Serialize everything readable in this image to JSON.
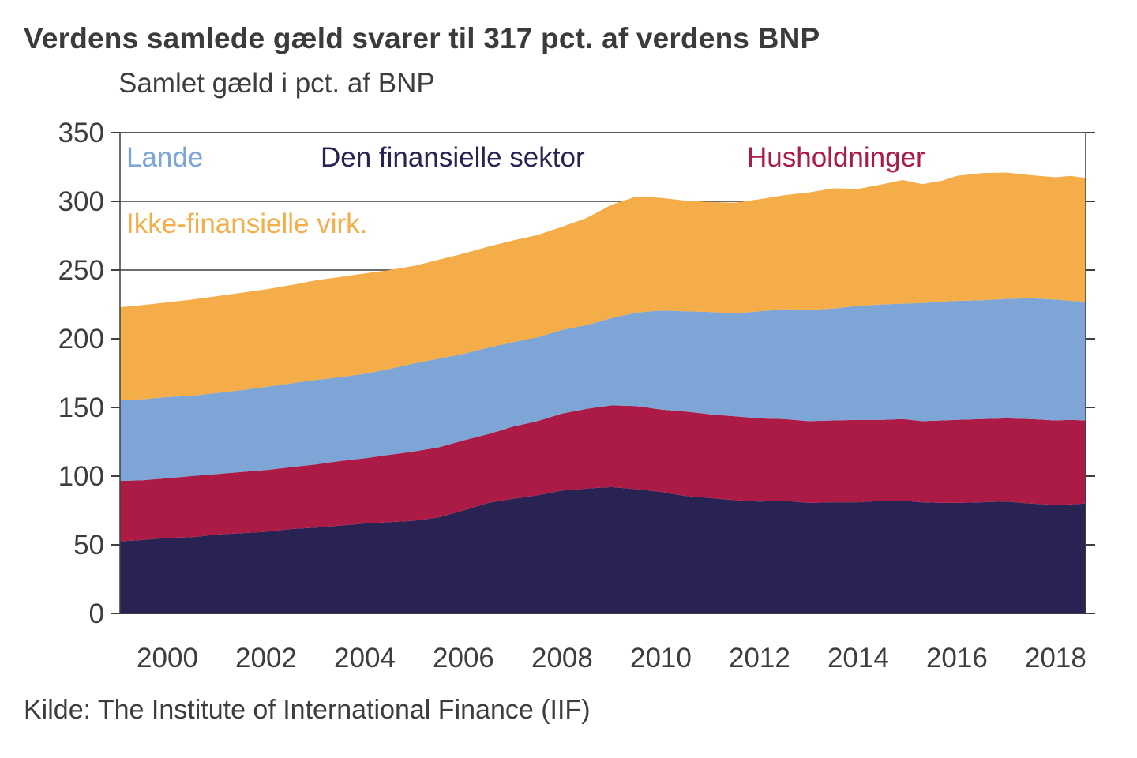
{
  "title": "Verdens samlede gæld svarer til 317 pct. af verdens BNP",
  "subtitle": "Samlet gæld i pct. af BNP",
  "source": "Kilde: The Institute of International Finance (IIF)",
  "colors": {
    "financial": "#292353",
    "households": "#AC1B45",
    "government": "#7DA5D5",
    "corporates": "#F4AD49",
    "grid": "#3f3f3f",
    "axis_text": "#3d3d3d"
  },
  "legend": {
    "lande": "Lande",
    "finansiel": "Den finansielle sektor",
    "husholdninger": "Husholdninger",
    "ikkefin": "Ikke-finansielle virk."
  },
  "axes": {
    "y_ticks": [
      0,
      50,
      100,
      150,
      200,
      250,
      300,
      350
    ],
    "x_ticks": [
      2000,
      2002,
      2004,
      2006,
      2008,
      2010,
      2012,
      2014,
      2016,
      2018
    ],
    "ylim": [
      0,
      350
    ],
    "xlim": [
      1999.04,
      2018.61
    ]
  },
  "chart_data": {
    "type": "area",
    "stacked": true,
    "title": "Samlet gæld i pct. af BNP",
    "xlabel": "",
    "ylabel": "pct. af BNP",
    "grid": "horizontal",
    "legend_position": "inside-top",
    "x": [
      1999.04,
      1999.5,
      2000,
      2000.5,
      2001,
      2001.5,
      2002,
      2002.5,
      2003,
      2003.5,
      2004,
      2004.5,
      2005,
      2005.5,
      2006,
      2006.5,
      2007,
      2007.5,
      2008,
      2008.5,
      2009,
      2009.5,
      2010,
      2010.5,
      2011,
      2011.5,
      2012,
      2012.5,
      2013,
      2013.5,
      2014,
      2014.5,
      2014.9,
      2015.3,
      2015.7,
      2016,
      2016.5,
      2017,
      2017.5,
      2018,
      2018.3,
      2018.61
    ],
    "series": [
      {
        "name": "Den finansielle sektor",
        "color_key": "financial",
        "values": [
          52.5,
          53.5,
          55,
          55.5,
          57.5,
          58.5,
          59.5,
          61.5,
          62.5,
          64,
          65.5,
          66.5,
          67.5,
          70,
          75,
          80.5,
          83.5,
          86,
          89.5,
          91,
          92,
          90.5,
          88.5,
          85.5,
          84,
          82.5,
          81.5,
          82,
          80.5,
          81,
          81,
          82,
          82,
          81,
          80.5,
          80.5,
          81,
          81.5,
          80,
          79,
          79.5,
          80
        ]
      },
      {
        "name": "Husholdninger",
        "color_key": "households",
        "values": [
          44,
          43.5,
          43.5,
          44.5,
          44,
          44.5,
          45,
          45,
          46,
          47,
          47.5,
          49,
          50.5,
          51,
          51,
          50,
          52.5,
          54,
          56,
          58,
          59.5,
          60.5,
          60,
          61.5,
          61,
          61,
          60.5,
          59.5,
          59.5,
          59.5,
          60,
          59,
          59.5,
          59,
          60,
          60.5,
          60.5,
          60.5,
          61.5,
          61.5,
          61.5,
          60.5
        ]
      },
      {
        "name": "Lande",
        "color_key": "government",
        "values": [
          58.5,
          59,
          59,
          58.5,
          59,
          59.5,
          60.5,
          61,
          61.5,
          61,
          61.5,
          62.5,
          64,
          64.5,
          63,
          63,
          61.5,
          61,
          61,
          61,
          63.5,
          68,
          72,
          73,
          74.5,
          75,
          78,
          80,
          81,
          81.5,
          83,
          84,
          84,
          86,
          86.5,
          86.5,
          86.5,
          87,
          88,
          88,
          86.5,
          86.5
        ]
      },
      {
        "name": "Ikke-finansielle virk.",
        "color_key": "corporates",
        "values": [
          68,
          68.5,
          69,
          70,
          70.5,
          71,
          71,
          71.5,
          72.5,
          73,
          73,
          72,
          71,
          72,
          73,
          73.5,
          74,
          74.5,
          75,
          78,
          82.5,
          84.5,
          82,
          80.5,
          80,
          80.5,
          81.5,
          83,
          85.5,
          87.5,
          85,
          87.5,
          90,
          86.5,
          88,
          91,
          92.5,
          92,
          89.5,
          89,
          91,
          90
        ]
      }
    ],
    "annotations": {
      "total_end": 317
    }
  }
}
